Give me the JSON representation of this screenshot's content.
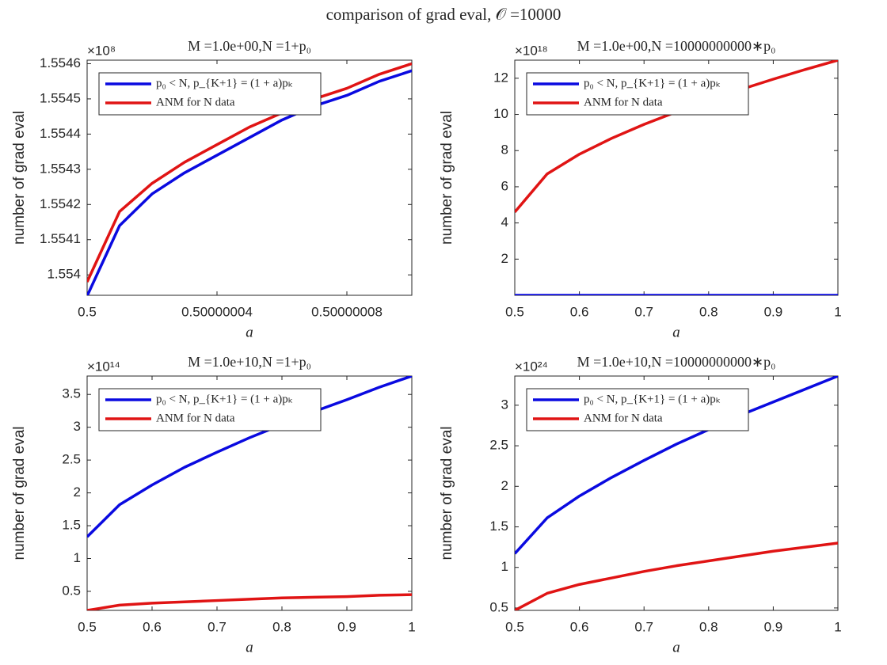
{
  "title": "comparison of grad eval, 𝒪 =10000",
  "chart_data": [
    {
      "type": "line",
      "title": "M =1.0e+00,N =1+p₀",
      "xlabel": "a",
      "ylabel": "number of grad eval",
      "y_exponent": "×10⁸",
      "x": [
        0.5,
        0.50000001,
        0.50000002,
        0.50000003,
        0.50000004,
        0.50000005,
        0.50000006,
        0.50000007,
        0.50000008,
        0.50000009,
        0.5000001
      ],
      "series": [
        {
          "name": "p₀ < N, p_{K+1} = (1 + a)pₖ",
          "color": "#0a0ae0",
          "values": [
            1.55394,
            1.55414,
            1.55423,
            1.55429,
            1.55434,
            1.55439,
            1.55444,
            1.55448,
            1.55451,
            1.55455,
            1.55458
          ]
        },
        {
          "name": "ANM for N data",
          "color": "#e01414",
          "values": [
            1.55398,
            1.55418,
            1.55426,
            1.55432,
            1.55437,
            1.55442,
            1.55446,
            1.5545,
            1.55453,
            1.55457,
            1.5546
          ]
        }
      ],
      "xlim": [
        0.5,
        0.5000001
      ],
      "xticks": [
        0.5,
        0.50000004,
        0.50000008
      ],
      "ylim": [
        1.553942,
        1.55461
      ],
      "yticks": [
        1.554,
        1.5541,
        1.5542,
        1.5543,
        1.5544,
        1.5545,
        1.5546
      ],
      "legend": "upper-left"
    },
    {
      "type": "line",
      "title": "M =1.0e+00,N =10000000000∗p₀",
      "xlabel": "a",
      "ylabel": "number of grad eval",
      "y_exponent": "×10¹⁸",
      "x": [
        0.5,
        0.55,
        0.6,
        0.65,
        0.7,
        0.75,
        0.8,
        0.85,
        0.9,
        0.95,
        1
      ],
      "series": [
        {
          "name": "p₀ < N, p_{K+1} = (1 + a)pₖ",
          "color": "#0a0ae0",
          "values": [
            0,
            0,
            0,
            0,
            0,
            0,
            0,
            0,
            0,
            0,
            0
          ]
        },
        {
          "name": "ANM for N data",
          "color": "#e01414",
          "values": [
            4.6,
            6.71,
            7.8,
            8.68,
            9.45,
            10.14,
            10.78,
            11.38,
            11.95,
            12.49,
            13.0
          ]
        }
      ],
      "xlim": [
        0.5,
        1
      ],
      "xticks": [
        0.5,
        0.6,
        0.7,
        0.8,
        0.9,
        1
      ],
      "ylim": [
        0,
        13
      ],
      "yticks": [
        2,
        4,
        6,
        8,
        10,
        12
      ],
      "legend": "upper-left"
    },
    {
      "type": "line",
      "title": "M =1.0e+10,N =1+p₀",
      "xlabel": "a",
      "ylabel": "number of grad eval",
      "y_exponent": "×10¹⁴",
      "x": [
        0.5,
        0.55,
        0.6,
        0.65,
        0.7,
        0.75,
        0.8,
        0.85,
        0.9,
        0.95,
        1
      ],
      "series": [
        {
          "name": "p₀ < N, p_{K+1} = (1 + a)pₖ",
          "color": "#0a0ae0",
          "values": [
            1.33,
            1.82,
            2.12,
            2.39,
            2.62,
            2.84,
            3.04,
            3.24,
            3.42,
            3.61,
            3.78
          ]
        },
        {
          "name": "ANM for N data",
          "color": "#e01414",
          "values": [
            0.21,
            0.29,
            0.32,
            0.34,
            0.36,
            0.38,
            0.4,
            0.41,
            0.42,
            0.44,
            0.45
          ]
        }
      ],
      "xlim": [
        0.5,
        1
      ],
      "xticks": [
        0.5,
        0.6,
        0.7,
        0.8,
        0.9,
        1
      ],
      "ylim": [
        0.21,
        3.78
      ],
      "yticks": [
        0.5,
        1,
        1.5,
        2,
        2.5,
        3,
        3.5
      ],
      "legend": "upper-left"
    },
    {
      "type": "line",
      "title": "M =1.0e+10,N =10000000000∗p₀",
      "xlabel": "a",
      "ylabel": "number of grad eval",
      "y_exponent": "×10²⁴",
      "x": [
        0.5,
        0.55,
        0.6,
        0.65,
        0.7,
        0.75,
        0.8,
        0.85,
        0.9,
        0.95,
        1
      ],
      "series": [
        {
          "name": "p₀ < N, p_{K+1} = (1 + a)pₖ",
          "color": "#0a0ae0",
          "values": [
            1.17,
            1.61,
            1.88,
            2.11,
            2.32,
            2.52,
            2.7,
            2.88,
            3.04,
            3.2,
            3.36
          ]
        },
        {
          "name": "ANM for N data",
          "color": "#e01414",
          "values": [
            0.47,
            0.68,
            0.79,
            0.87,
            0.95,
            1.02,
            1.08,
            1.14,
            1.2,
            1.25,
            1.3
          ]
        }
      ],
      "xlim": [
        0.5,
        1
      ],
      "xticks": [
        0.5,
        0.6,
        0.7,
        0.8,
        0.9,
        1
      ],
      "ylim": [
        0.47,
        3.36
      ],
      "yticks": [
        0.5,
        1,
        1.5,
        2,
        2.5,
        3
      ],
      "legend": "upper-left"
    }
  ]
}
